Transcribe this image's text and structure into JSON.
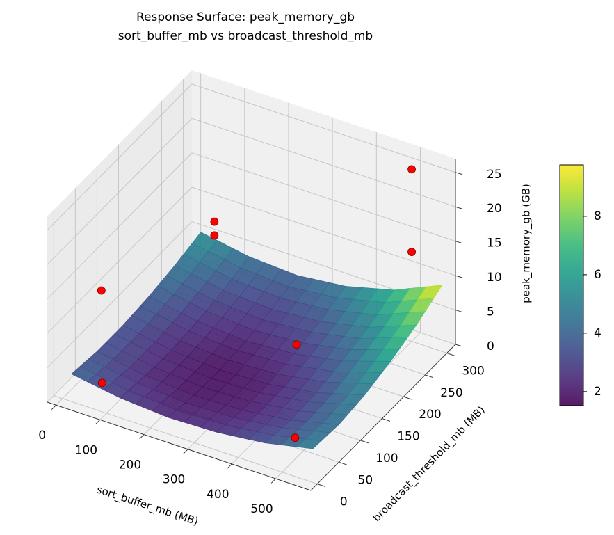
{
  "chart_data": {
    "type": "surface",
    "title": "Response Surface: peak_memory_gb",
    "subtitle": "sort_buffer_mb vs broadcast_threshold_mb",
    "xlabel": "sort_buffer_mb (MB)",
    "ylabel": "broadcast_threshold_mb (MB)",
    "zlabel": "peak_memory_gb (GB)",
    "xlim": [
      -20,
      580
    ],
    "ylim": [
      -15,
      320
    ],
    "zlim": [
      0,
      27
    ],
    "xticks": [
      0,
      100,
      200,
      300,
      400,
      500
    ],
    "yticks": [
      0,
      50,
      100,
      150,
      200,
      250,
      300
    ],
    "zticks": [
      0,
      5,
      10,
      15,
      20,
      25
    ],
    "colormap": "viridis",
    "surface": {
      "x": [
        20,
        130,
        240,
        350,
        460,
        570
      ],
      "y": [
        0,
        60,
        120,
        180,
        240,
        300
      ],
      "z": [
        [
          4.0,
          2.9,
          2.4,
          2.6,
          3.4,
          4.9
        ],
        [
          3.5,
          2.3,
          1.8,
          2.0,
          2.9,
          4.6
        ],
        [
          3.5,
          2.2,
          1.7,
          2.0,
          3.1,
          5.1
        ],
        [
          3.9,
          2.6,
          2.1,
          2.6,
          3.9,
          6.2
        ],
        [
          4.6,
          3.3,
          2.9,
          3.5,
          5.0,
          7.7
        ],
        [
          5.6,
          4.4,
          4.0,
          4.8,
          6.6,
          9.7
        ]
      ]
    },
    "points": {
      "color": "#ff0000",
      "x": [
        500,
        500,
        100,
        100,
        0,
        90,
        410,
        500
      ],
      "y": [
        300,
        300,
        250,
        250,
        90,
        0,
        125,
        30
      ],
      "z": [
        25,
        13,
        12,
        10,
        10,
        4.2,
        8.7,
        3.1
      ]
    },
    "colorbar": {
      "lim": [
        1.52,
        9.76
      ],
      "ticks": [
        2,
        4,
        6,
        8
      ]
    }
  }
}
